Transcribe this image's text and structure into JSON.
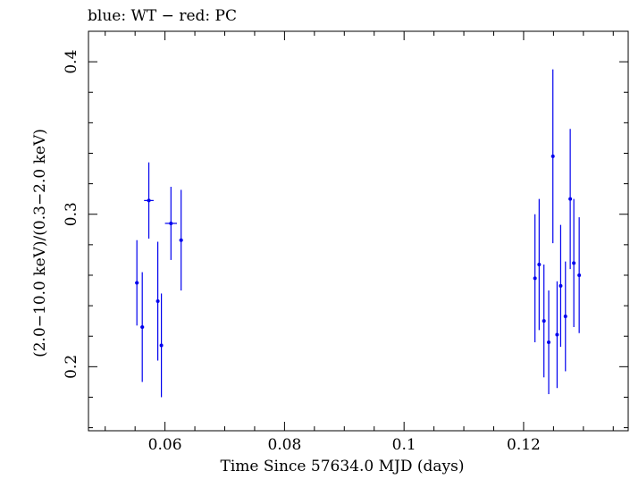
{
  "chart_data": {
    "type": "scatter",
    "title": "blue: WT − red: PC",
    "xlabel": "Time Since 57634.0 MJD (days)",
    "ylabel": "(2.0−10.0 keV)/(0.3−2.0 keV)",
    "xlim": [
      0.0472,
      0.1375
    ],
    "ylim": [
      0.158,
      0.42
    ],
    "x_ticks": [
      {
        "value": 0.06,
        "label": "0.06"
      },
      {
        "value": 0.08,
        "label": "0.08"
      },
      {
        "value": 0.1,
        "label": "0.1"
      },
      {
        "value": 0.12,
        "label": "0.12"
      }
    ],
    "y_ticks": [
      {
        "value": 0.2,
        "label": "0.2"
      },
      {
        "value": 0.3,
        "label": "0.3"
      },
      {
        "value": 0.4,
        "label": "0.4"
      }
    ],
    "x_minor_step": 0.005,
    "y_minor_step": 0.02,
    "grid": false,
    "series": [
      {
        "name": "WT",
        "color": "#0000ee",
        "points": [
          {
            "x": 0.0553,
            "xerr": 0.0003,
            "y": 0.255,
            "ylo": 0.227,
            "yhi": 0.283
          },
          {
            "x": 0.0562,
            "xerr": 0.0003,
            "y": 0.226,
            "ylo": 0.19,
            "yhi": 0.262
          },
          {
            "x": 0.0573,
            "xerr": 0.0008,
            "y": 0.309,
            "ylo": 0.284,
            "yhi": 0.334
          },
          {
            "x": 0.0588,
            "xerr": 0.0002,
            "y": 0.243,
            "ylo": 0.204,
            "yhi": 0.282
          },
          {
            "x": 0.0594,
            "xerr": 0.0002,
            "y": 0.214,
            "ylo": 0.18,
            "yhi": 0.248
          },
          {
            "x": 0.061,
            "xerr": 0.001,
            "y": 0.294,
            "ylo": 0.27,
            "yhi": 0.318
          },
          {
            "x": 0.0627,
            "xerr": 0.0003,
            "y": 0.283,
            "ylo": 0.25,
            "yhi": 0.316
          },
          {
            "x": 0.1219,
            "xerr": 0.0002,
            "y": 0.258,
            "ylo": 0.216,
            "yhi": 0.3
          },
          {
            "x": 0.1226,
            "xerr": 0.0002,
            "y": 0.267,
            "ylo": 0.224,
            "yhi": 0.31
          },
          {
            "x": 0.1234,
            "xerr": 0.0002,
            "y": 0.23,
            "ylo": 0.193,
            "yhi": 0.267
          },
          {
            "x": 0.1242,
            "xerr": 0.0002,
            "y": 0.216,
            "ylo": 0.182,
            "yhi": 0.25
          },
          {
            "x": 0.1249,
            "xerr": 0.0002,
            "y": 0.338,
            "ylo": 0.281,
            "yhi": 0.395
          },
          {
            "x": 0.1256,
            "xerr": 0.0002,
            "y": 0.221,
            "ylo": 0.186,
            "yhi": 0.256
          },
          {
            "x": 0.1262,
            "xerr": 0.0002,
            "y": 0.253,
            "ylo": 0.213,
            "yhi": 0.293
          },
          {
            "x": 0.127,
            "xerr": 0.0002,
            "y": 0.233,
            "ylo": 0.197,
            "yhi": 0.269
          },
          {
            "x": 0.1278,
            "xerr": 0.0002,
            "y": 0.31,
            "ylo": 0.264,
            "yhi": 0.356
          },
          {
            "x": 0.1284,
            "xerr": 0.0002,
            "y": 0.268,
            "ylo": 0.226,
            "yhi": 0.31
          },
          {
            "x": 0.1293,
            "xerr": 0.0002,
            "y": 0.26,
            "ylo": 0.222,
            "yhi": 0.298
          }
        ]
      }
    ]
  }
}
